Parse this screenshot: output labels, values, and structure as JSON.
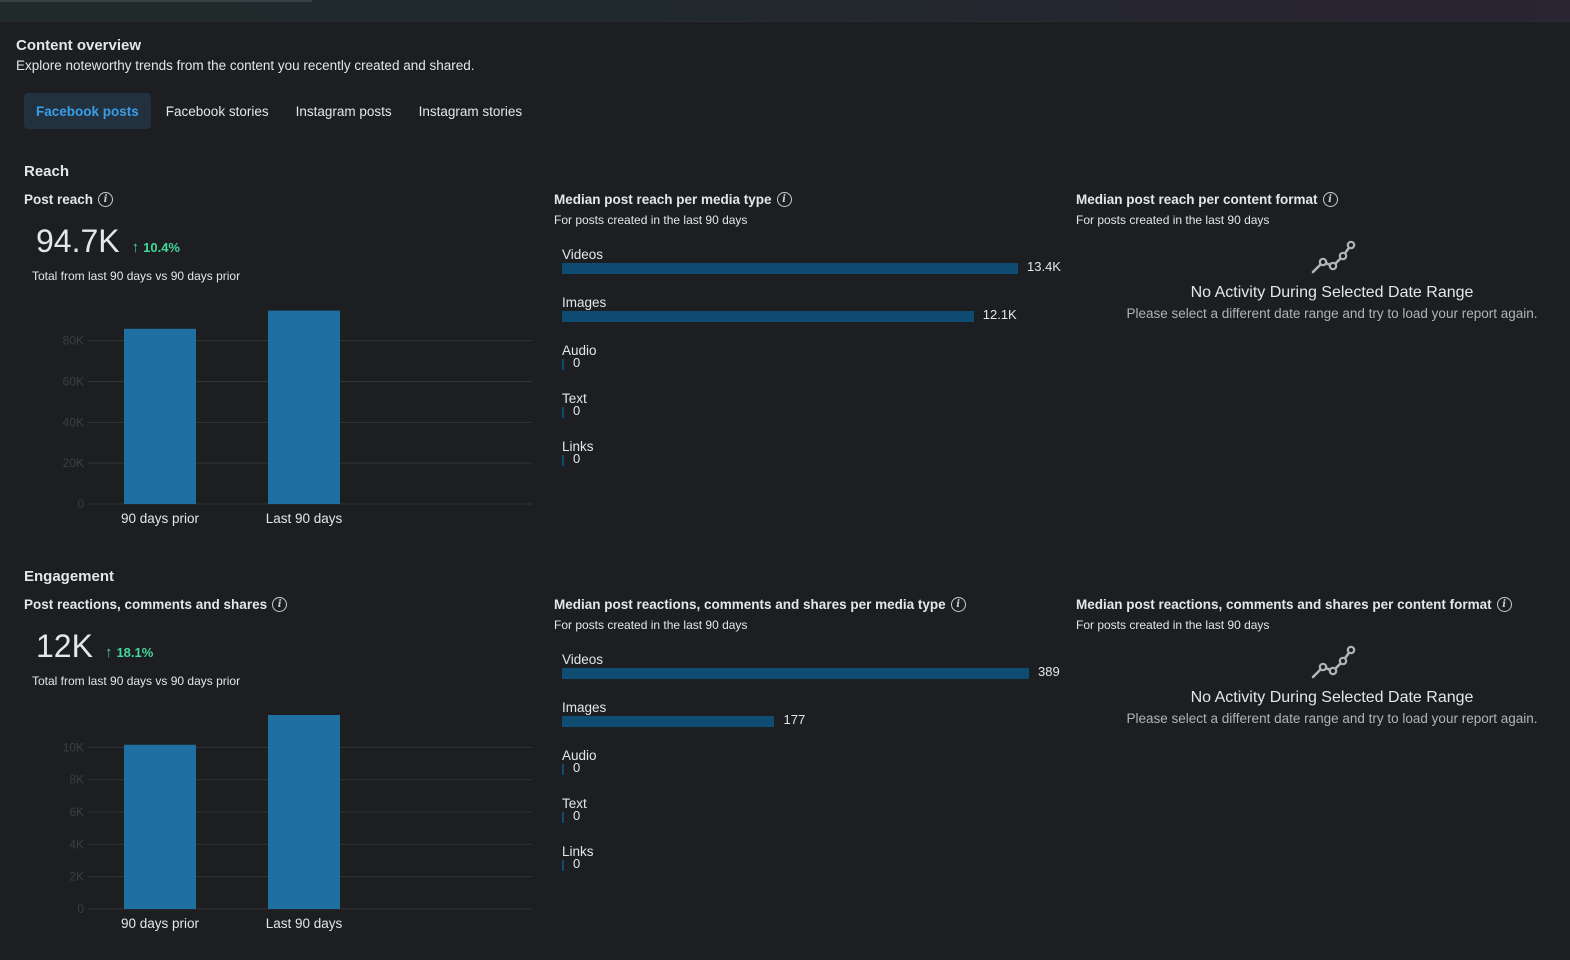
{
  "header": {
    "title": "Content overview",
    "subtitle": "Explore noteworthy trends from the content you recently created and shared."
  },
  "tabs": [
    {
      "label": "Facebook posts",
      "active": true
    },
    {
      "label": "Facebook stories",
      "active": false
    },
    {
      "label": "Instagram posts",
      "active": false
    },
    {
      "label": "Instagram stories",
      "active": false
    }
  ],
  "colors": {
    "accent": "#3a9ee8",
    "positive": "#45d69a",
    "bar": "#1f6fa3",
    "hbar": "#0f4c72",
    "background": "#1c1e21"
  },
  "reach": {
    "section_title": "Reach",
    "metric_label": "Post reach",
    "value": "94.7K",
    "change": "10.4%",
    "caption": "Total from last 90 days vs 90 days prior",
    "media_type": {
      "title": "Median post reach per media type",
      "subtitle": "For posts created in the last 90 days",
      "items": [
        {
          "label": "Videos",
          "value": 13400,
          "display": "13.4K"
        },
        {
          "label": "Images",
          "value": 12100,
          "display": "12.1K"
        },
        {
          "label": "Audio",
          "value": 0,
          "display": "0"
        },
        {
          "label": "Text",
          "value": 0,
          "display": "0"
        },
        {
          "label": "Links",
          "value": 0,
          "display": "0"
        }
      ]
    },
    "content_format": {
      "title": "Median post reach per content format",
      "subtitle": "For posts created in the last 90 days",
      "empty_title": "No Activity During Selected Date Range",
      "empty_text": "Please select a different date range and try to load your report again.",
      "icon": "line-chart-icon"
    }
  },
  "engagement": {
    "section_title": "Engagement",
    "metric_label": "Post reactions, comments and shares",
    "value": "12K",
    "change": "18.1%",
    "caption": "Total from last 90 days vs 90 days prior",
    "media_type": {
      "title": "Median post reactions, comments and shares per media type",
      "subtitle": "For posts created in the last 90 days",
      "items": [
        {
          "label": "Videos",
          "value": 389,
          "display": "389"
        },
        {
          "label": "Images",
          "value": 177,
          "display": "177"
        },
        {
          "label": "Audio",
          "value": 0,
          "display": "0"
        },
        {
          "label": "Text",
          "value": 0,
          "display": "0"
        },
        {
          "label": "Links",
          "value": 0,
          "display": "0"
        }
      ]
    },
    "content_format": {
      "title": "Median post reactions, comments and shares per content format",
      "subtitle": "For posts created in the last 90 days",
      "empty_title": "No Activity During Selected Date Range",
      "empty_text": "Please select a different date range and try to load your report again.",
      "icon": "line-chart-icon"
    }
  },
  "chart_data": [
    {
      "type": "bar",
      "categories": [
        "90 days prior",
        "Last 90 days"
      ],
      "values": [
        85800,
        94700
      ],
      "yticks": [
        "0",
        "20K",
        "40K",
        "60K",
        "80K"
      ],
      "ylim": [
        0,
        95000
      ],
      "grid": true
    },
    {
      "type": "bar",
      "categories": [
        "90 days prior",
        "Last 90 days"
      ],
      "values": [
        10160,
        12000
      ],
      "yticks": [
        "0",
        "2K",
        "4K",
        "6K",
        "8K",
        "10K"
      ],
      "ylim": [
        0,
        12000
      ],
      "grid": true
    },
    {
      "type": "bar",
      "orientation": "horizontal",
      "categories": [
        "Videos",
        "Images",
        "Audio",
        "Text",
        "Links"
      ],
      "values": [
        13400,
        12100,
        0,
        0,
        0
      ]
    },
    {
      "type": "bar",
      "orientation": "horizontal",
      "categories": [
        "Videos",
        "Images",
        "Audio",
        "Text",
        "Links"
      ],
      "values": [
        389,
        177,
        0,
        0,
        0
      ]
    }
  ]
}
